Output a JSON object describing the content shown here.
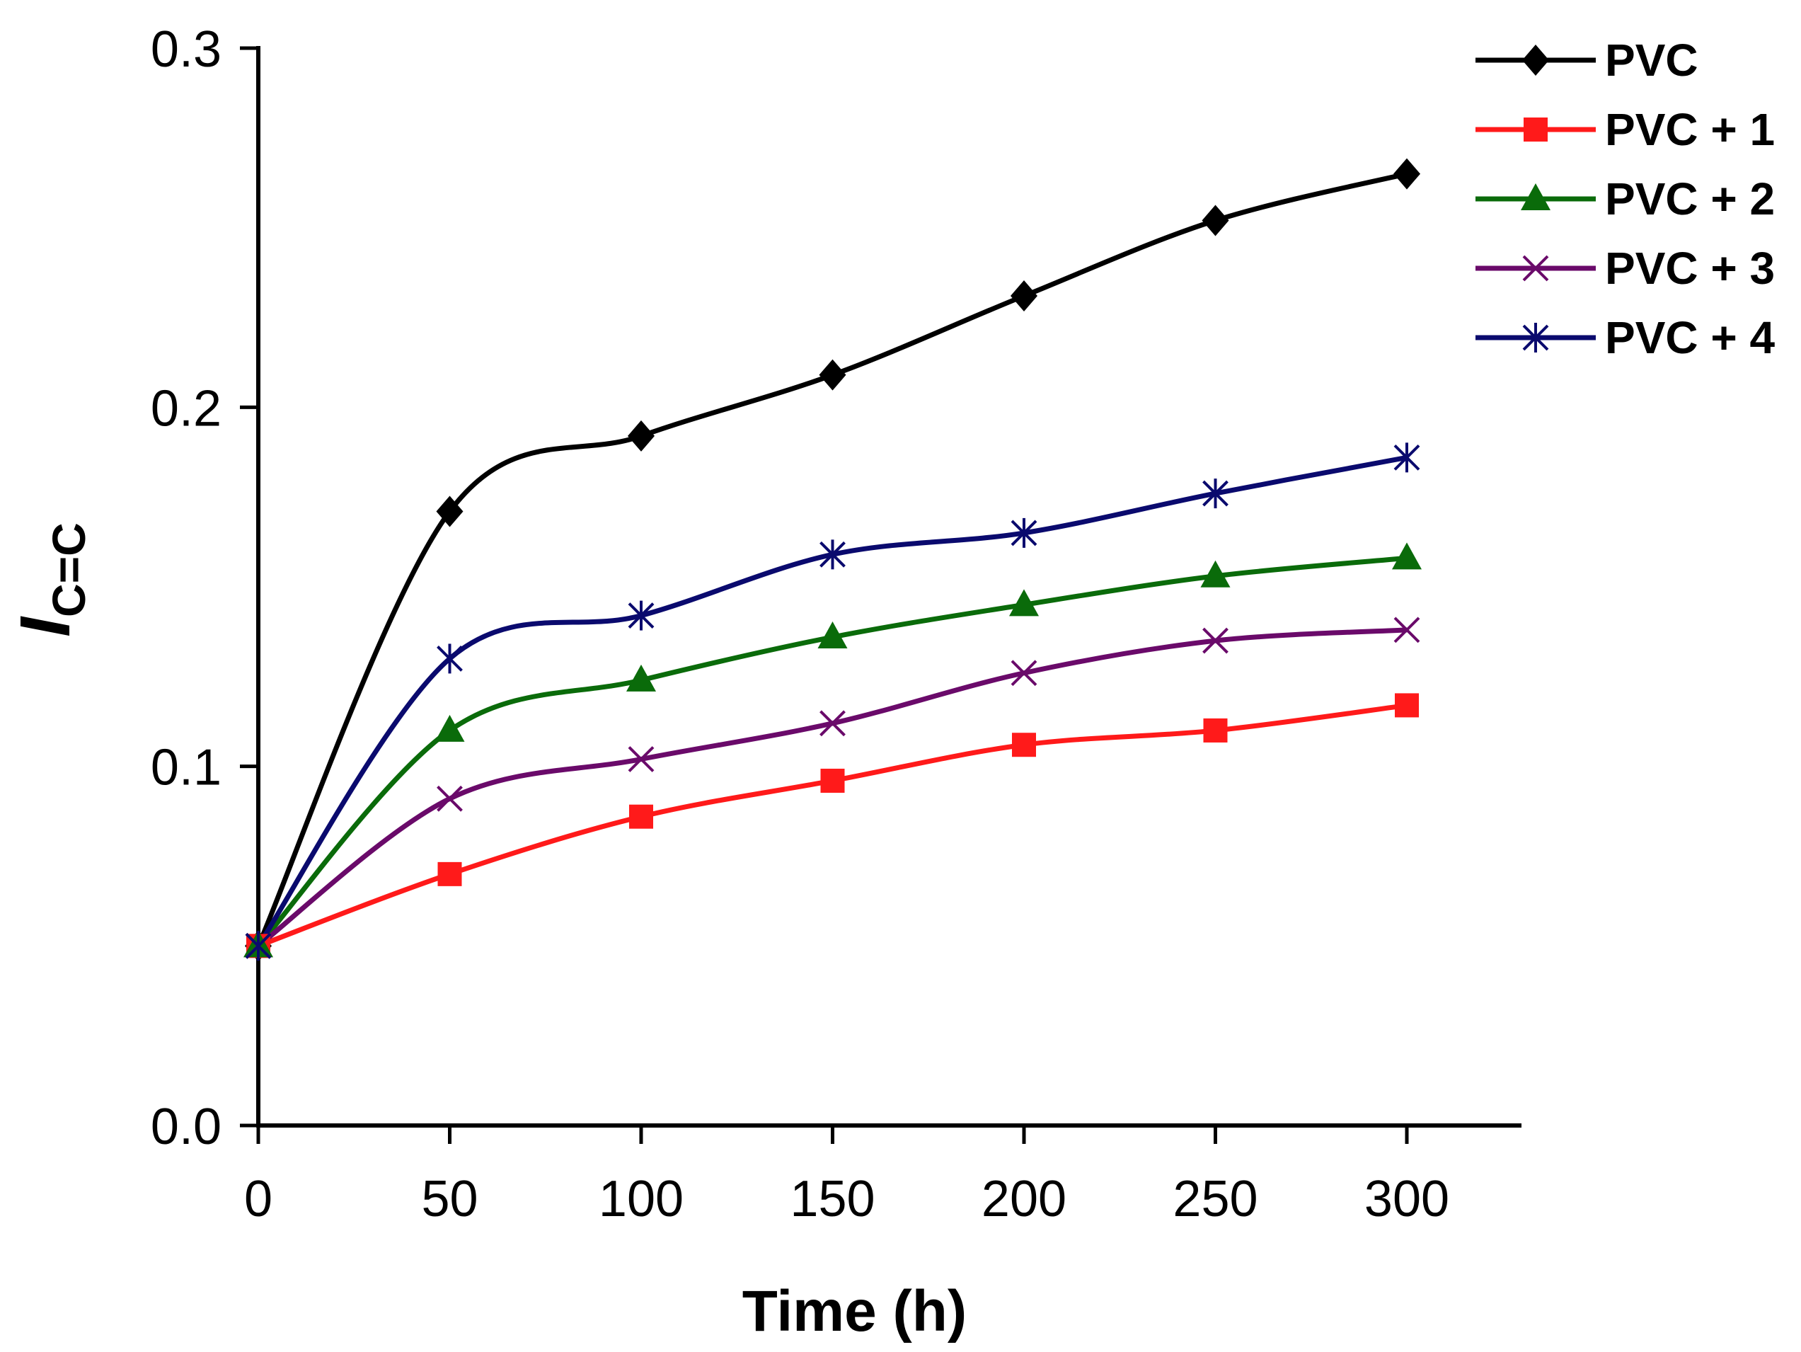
{
  "chart_data": {
    "type": "line",
    "x": [
      0,
      50,
      100,
      150,
      200,
      250,
      300
    ],
    "xlabel": "Time (h)",
    "ylabel_main": "I",
    "ylabel_sub": "C=C",
    "xlim": [
      0,
      330
    ],
    "ylim": [
      0,
      0.3
    ],
    "x_ticks": [
      0,
      50,
      100,
      150,
      200,
      250,
      300
    ],
    "y_ticks": [
      0,
      0.1,
      0.2,
      0.3
    ],
    "y_tick_labels": [
      "0.0",
      "0.1",
      "0.2",
      "0.3"
    ],
    "grid": false,
    "legend_position": "top-right",
    "series": [
      {
        "name": "PVC",
        "color": "#000000",
        "marker": "diamond",
        "values": [
          0.05,
          0.171,
          0.192,
          0.209,
          0.231,
          0.252,
          0.265
        ]
      },
      {
        "name": "PVC + 1",
        "color": "#ff1a1a",
        "marker": "square",
        "values": [
          0.05,
          0.07,
          0.086,
          0.096,
          0.106,
          0.11,
          0.117
        ]
      },
      {
        "name": "PVC + 2",
        "color": "#0a6b0a",
        "marker": "triangle",
        "values": [
          0.05,
          0.11,
          0.124,
          0.136,
          0.145,
          0.153,
          0.158
        ]
      },
      {
        "name": "PVC + 3",
        "color": "#6a0a6a",
        "marker": "x",
        "values": [
          0.05,
          0.091,
          0.102,
          0.112,
          0.126,
          0.135,
          0.138
        ]
      },
      {
        "name": "PVC + 4",
        "color": "#0a0a6e",
        "marker": "star",
        "values": [
          0.05,
          0.13,
          0.142,
          0.159,
          0.165,
          0.176,
          0.186
        ]
      }
    ]
  }
}
